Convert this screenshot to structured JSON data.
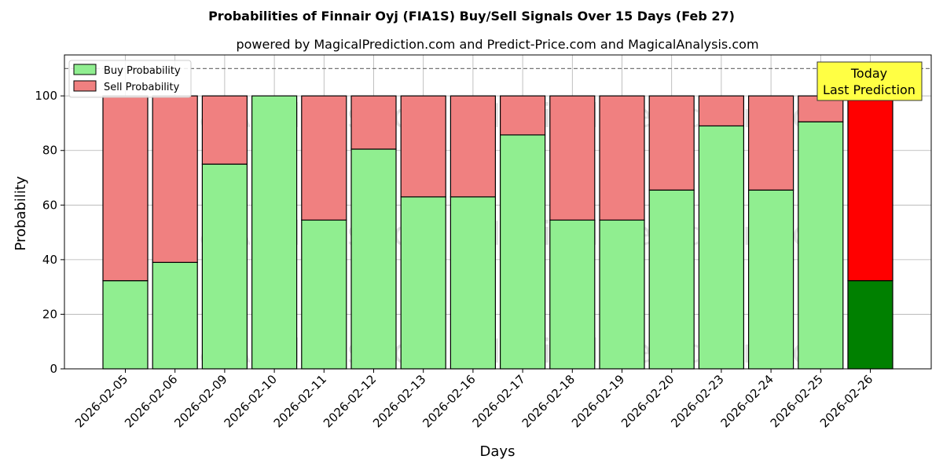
{
  "chart_data": {
    "type": "bar",
    "stacked": true,
    "title": "Probabilities of Finnair Oyj (FIA1S) Buy/Sell Signals Over 15 Days (Feb 27)",
    "subtitle": "powered by MagicalPrediction.com and Predict-Price.com and MagicalAnalysis.com",
    "xlabel": "Days",
    "ylabel": "Probability",
    "ylim": [
      0,
      115
    ],
    "yticks": [
      0,
      20,
      40,
      60,
      80,
      100
    ],
    "grid": true,
    "legend_position": "top-left",
    "reference_line": 110,
    "categories": [
      "2026-02-05",
      "2026-02-06",
      "2026-02-09",
      "2026-02-10",
      "2026-02-11",
      "2026-02-12",
      "2026-02-13",
      "2026-02-16",
      "2026-02-17",
      "2026-02-18",
      "2026-02-19",
      "2026-02-20",
      "2026-02-23",
      "2026-02-24",
      "2026-02-25",
      "2026-02-26"
    ],
    "series": [
      {
        "name": "Buy Probability",
        "color": "#90ee90",
        "values": [
          32.3,
          39.0,
          75.0,
          100.0,
          54.5,
          80.5,
          63.0,
          63.0,
          85.7,
          54.5,
          54.5,
          65.5,
          89.0,
          65.5,
          90.5,
          32.3
        ]
      },
      {
        "name": "Sell Probability",
        "color": "#f08080",
        "values": [
          67.7,
          61.0,
          25.0,
          0.0,
          45.5,
          19.5,
          37.0,
          37.0,
          14.3,
          45.5,
          45.5,
          34.5,
          11.0,
          34.5,
          9.5,
          67.7
        ]
      }
    ],
    "highlight": {
      "index": 15,
      "buy_color": "#008000",
      "sell_color": "#ff0000",
      "annotation": [
        "Today",
        "Last Prediction"
      ],
      "annotation_color": "#ffff44"
    },
    "watermarks": [
      "MagicalAnalysis.com",
      "MagicalPrediction.com"
    ]
  }
}
